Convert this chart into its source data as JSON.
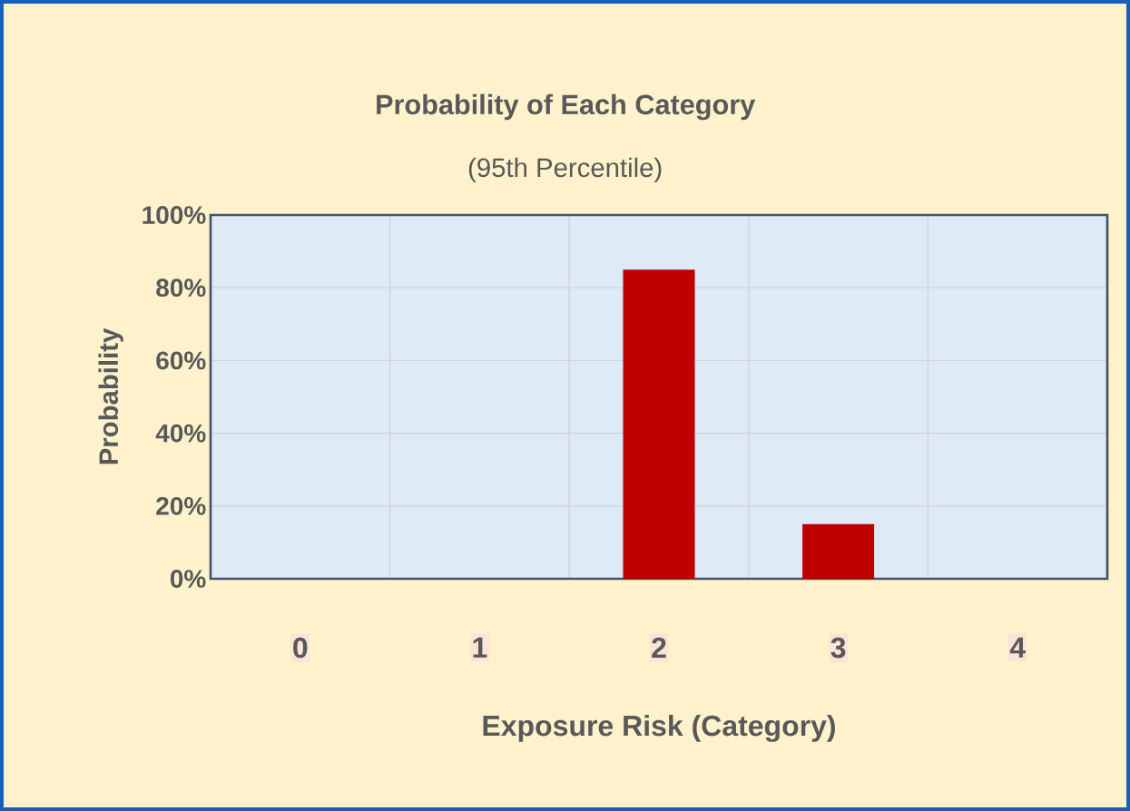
{
  "chart_data": {
    "type": "bar",
    "title": "Probability of Each Category",
    "subtitle": "(95th Percentile)",
    "xlabel": "Exposure Risk (Category)",
    "ylabel": "Probability",
    "categories": [
      "0",
      "1",
      "2",
      "3",
      "4"
    ],
    "values": [
      0,
      0,
      85,
      15,
      0
    ],
    "color": "#c00000",
    "ylim": [
      0,
      100
    ],
    "yticks": [
      {
        "value": 0,
        "label": "0%"
      },
      {
        "value": 20,
        "label": "20%"
      },
      {
        "value": 40,
        "label": "40%"
      },
      {
        "value": 60,
        "label": "60%"
      },
      {
        "value": 80,
        "label": "80%"
      },
      {
        "value": 100,
        "label": "100%"
      }
    ],
    "grid": true
  }
}
